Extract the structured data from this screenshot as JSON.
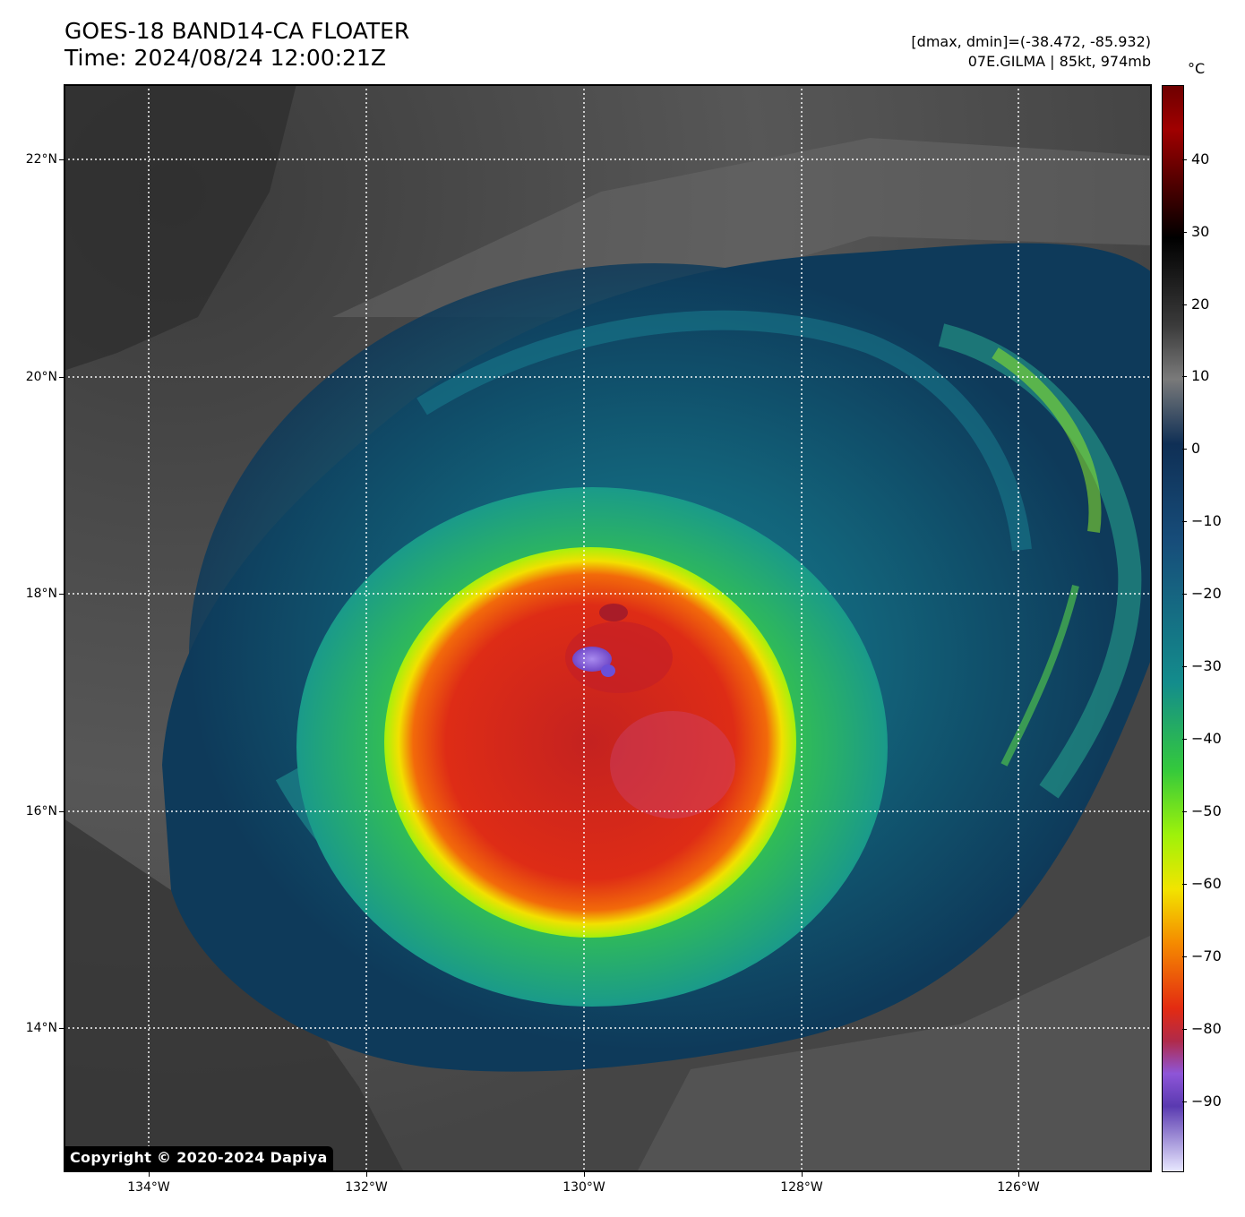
{
  "title": {
    "line1": "GOES-18 BAND14-CA FLOATER",
    "line2": "Time: 2024/08/24 12:00:21Z"
  },
  "info": {
    "range": "[dmax, dmin]=(-38.472, -85.932)",
    "storm": "07E.GILMA | 85kt, 974mb"
  },
  "copyright": "Copyright © 2020-2024 Dapiya",
  "axes": {
    "lat_labels": [
      "22°N",
      "20°N",
      "18°N",
      "16°N",
      "14°N"
    ],
    "lon_labels": [
      "134°W",
      "132°W",
      "130°W",
      "128°W",
      "126°W"
    ],
    "grid": "dotted white"
  },
  "colorbar": {
    "unit": "°C",
    "labels": [
      "40",
      "30",
      "20",
      "10",
      "0",
      "−10",
      "−20",
      "−30",
      "−40",
      "−50",
      "−60",
      "−70",
      "−80",
      "−90"
    ],
    "range": [
      -100,
      50
    ],
    "colors": {
      "warm_top": "#6e0000",
      "black": "#000000",
      "gray": "#7a7a7a",
      "dark_blue": "#0f2f55",
      "teal": "#138c8c",
      "green": "#34c93c",
      "yellow_green": "#9ef20a",
      "yellow": "#f2e400",
      "orange": "#f58a00",
      "red": "#e32b12",
      "purple": "#8e55d8",
      "pale": "#e8e8ff"
    }
  },
  "image": {
    "subject": "infrared satellite view of hurricane",
    "colors": {
      "background_land_sea": "#4a4a4a",
      "outer_cloud": "#0e3e5e",
      "rain_band": "#1a8f9a",
      "inner_green": "#3ccd3c",
      "core_yellow": "#e8e800",
      "core_red": "#dd2a18",
      "eye_purple": "#8e6de0"
    }
  }
}
